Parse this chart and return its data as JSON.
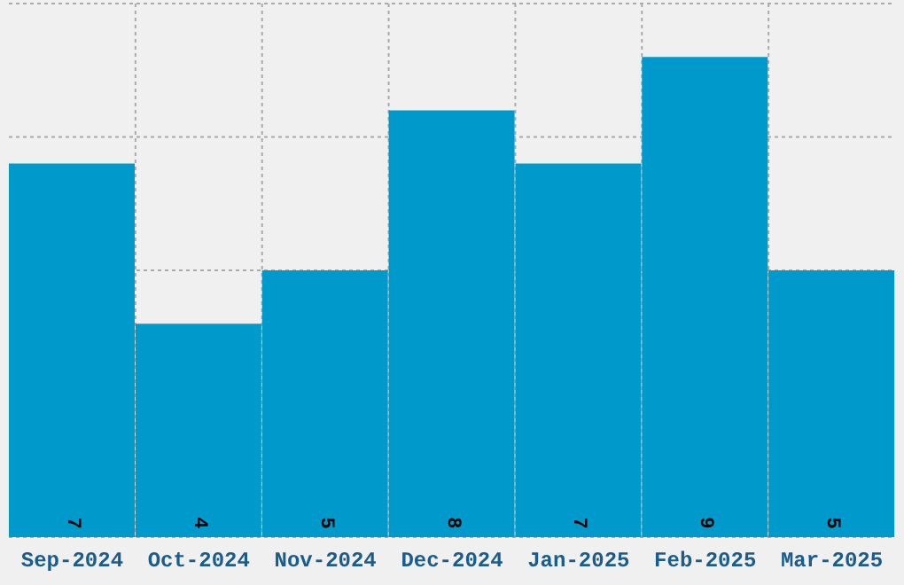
{
  "chart_data": {
    "type": "bar",
    "categories": [
      "Sep-2024",
      "Oct-2024",
      "Nov-2024",
      "Dec-2024",
      "Jan-2025",
      "Feb-2025",
      "Mar-2025"
    ],
    "values": [
      7,
      4,
      5,
      8,
      7,
      9,
      5
    ],
    "color": "#0099cc",
    "data_labels": true,
    "ylim": [
      0,
      10
    ],
    "yticks": [
      {
        "value": 0,
        "label": null
      },
      {
        "value": 2.5,
        "label": null
      },
      {
        "value": 5,
        "label": null
      },
      {
        "value": 7.5,
        "label": null
      },
      {
        "value": 10,
        "label": null
      }
    ],
    "grid": true,
    "tick_labels": "x"
  }
}
